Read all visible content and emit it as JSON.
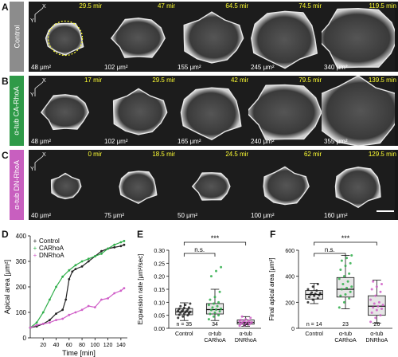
{
  "panels": {
    "A": {
      "letter": "A",
      "label": "Control",
      "color": "#8c8c8c",
      "times": [
        "29.5 min",
        "47 min",
        "64.5 min",
        "74.5 min",
        "119.5 min"
      ],
      "areas": [
        "48 μm²",
        "102 μm²",
        "155 μm²",
        "245 μm²",
        "340 μm²"
      ]
    },
    "B": {
      "letter": "B",
      "label": "α-tub CA-RhoA",
      "color": "#2f9a48",
      "times": [
        "17 min",
        "29.5 min",
        "42 min",
        "79.5 min",
        "139.5 min"
      ],
      "areas": [
        "48 μm²",
        "102 μm²",
        "165 μm²",
        "240 μm²",
        "355 μm²"
      ]
    },
    "C": {
      "letter": "C",
      "label": "α-tub DN-RhoA",
      "color": "#c85fbf",
      "times": [
        "0 min",
        "18.5 min",
        "24.5 min",
        "62 min",
        "129.5 min"
      ],
      "areas": [
        "40 μm²",
        "75 μm²",
        "50 μm²",
        "100 μm²",
        "160 μm²"
      ]
    }
  },
  "axes_glyph": {
    "x": "X",
    "y": "Y"
  },
  "panel_D": {
    "letter": "D",
    "ylabel": "Apical area [μm²]",
    "xlabel": "Time [min]",
    "legend": [
      "Control",
      "CARhoA",
      "DNRhoA"
    ]
  },
  "panel_E": {
    "letter": "E",
    "ylabel": "Expansion rate [μm²/sec]",
    "significance": [
      "***",
      "n.s."
    ],
    "n_prefix": "n ="
  },
  "panel_F": {
    "letter": "F",
    "ylabel": "Final apical area [μm²]",
    "significance": [
      "***",
      "n.s."
    ],
    "n_prefix": "n ="
  },
  "colors": {
    "control": "#222222",
    "ca": "#2fae4a",
    "dn": "#d05fc8"
  },
  "chart_data": [
    {
      "type": "line",
      "ylim": [
        0,
        400
      ],
      "xlim": [
        0,
        150
      ],
      "yticks": [
        0,
        100,
        200,
        300,
        400
      ],
      "xticks": [
        20,
        40,
        60,
        80,
        100,
        120,
        140
      ],
      "series": [
        {
          "name": "Control",
          "x": [
            0,
            10,
            20,
            30,
            40,
            50,
            55,
            60,
            65,
            70,
            80,
            90,
            100,
            110,
            120,
            130,
            140,
            145
          ],
          "y": [
            40,
            45,
            55,
            70,
            95,
            110,
            150,
            230,
            260,
            270,
            280,
            300,
            320,
            340,
            350,
            355,
            360,
            365
          ]
        },
        {
          "name": "CARhoA",
          "x": [
            0,
            10,
            20,
            30,
            40,
            50,
            60,
            70,
            80,
            90,
            100,
            110,
            120,
            130,
            140,
            145
          ],
          "y": [
            40,
            60,
            100,
            150,
            200,
            240,
            265,
            285,
            300,
            310,
            320,
            330,
            350,
            365,
            375,
            380
          ]
        },
        {
          "name": "DNRhoA",
          "x": [
            0,
            10,
            20,
            30,
            40,
            50,
            60,
            70,
            80,
            90,
            100,
            110,
            120,
            130,
            140,
            145
          ],
          "y": [
            40,
            50,
            55,
            60,
            70,
            75,
            90,
            100,
            110,
            125,
            120,
            150,
            155,
            175,
            185,
            195
          ]
        }
      ]
    },
    {
      "type": "box",
      "ylim": [
        0,
        0.3
      ],
      "yticks": [
        0,
        0.05,
        0.1,
        0.15,
        0.2,
        0.25,
        0.3
      ],
      "categories": [
        "Control",
        "α-tub CARhoA",
        "α-tub DNRhoA"
      ],
      "n": [
        35,
        34,
        34
      ],
      "boxes": [
        {
          "min": 0.03,
          "q1": 0.052,
          "median": 0.063,
          "q3": 0.076,
          "max": 0.098
        },
        {
          "min": 0.03,
          "q1": 0.055,
          "median": 0.072,
          "q3": 0.095,
          "max": 0.15
        },
        {
          "min": 0.008,
          "q1": 0.016,
          "median": 0.023,
          "q3": 0.032,
          "max": 0.045
        }
      ],
      "points": [
        [
          0.04,
          0.045,
          0.05,
          0.052,
          0.055,
          0.057,
          0.06,
          0.062,
          0.063,
          0.065,
          0.066,
          0.068,
          0.07,
          0.072,
          0.075,
          0.078,
          0.08,
          0.085,
          0.09,
          0.095
        ],
        [
          0.035,
          0.045,
          0.05,
          0.055,
          0.06,
          0.065,
          0.07,
          0.072,
          0.075,
          0.08,
          0.085,
          0.09,
          0.095,
          0.1,
          0.11,
          0.12,
          0.14,
          0.2,
          0.22,
          0.235
        ],
        [
          0.01,
          0.012,
          0.015,
          0.017,
          0.018,
          0.02,
          0.021,
          0.022,
          0.023,
          0.024,
          0.025,
          0.026,
          0.028,
          0.03,
          0.032,
          0.035,
          0.04,
          0.045
        ]
      ]
    },
    {
      "type": "box",
      "ylim": [
        0,
        600
      ],
      "yticks": [
        0,
        200,
        400,
        600
      ],
      "categories": [
        "Control",
        "α-tub CARhoA",
        "α-tub DNRhoA"
      ],
      "n": [
        14,
        23,
        26
      ],
      "boxes": [
        {
          "min": 190,
          "q1": 225,
          "median": 260,
          "q3": 290,
          "max": 345
        },
        {
          "min": 150,
          "q1": 240,
          "median": 300,
          "q3": 390,
          "max": 560
        },
        {
          "min": 40,
          "q1": 100,
          "median": 170,
          "q3": 250,
          "max": 370
        }
      ],
      "points": [
        [
          200,
          220,
          230,
          240,
          250,
          255,
          260,
          265,
          270,
          275,
          290,
          300,
          320,
          340
        ],
        [
          160,
          200,
          230,
          250,
          260,
          280,
          300,
          310,
          320,
          340,
          360,
          380,
          400,
          420,
          450,
          480,
          500,
          520,
          540,
          560
        ],
        [
          50,
          80,
          100,
          120,
          140,
          150,
          160,
          170,
          180,
          190,
          200,
          220,
          250,
          280,
          300,
          320,
          340,
          360
        ]
      ]
    }
  ]
}
